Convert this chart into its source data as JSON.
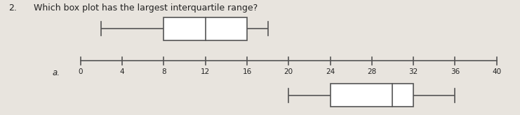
{
  "question_number": "2.",
  "question_text": "Which box plot has the largest interquartile range?",
  "label_a": "a.",
  "axis_min": 0,
  "axis_max": 40,
  "axis_ticks": [
    0,
    4,
    8,
    12,
    16,
    20,
    24,
    28,
    32,
    36,
    40
  ],
  "boxplot_top": {
    "whisker_lo": 2,
    "q1": 8,
    "median": 12,
    "q3": 16,
    "whisker_hi": 18
  },
  "boxplot_bottom": {
    "whisker_lo": 20,
    "q1": 24,
    "median": 30,
    "q3": 32,
    "whisker_hi": 36
  },
  "box_facecolor": "#ffffff",
  "box_edgecolor": "#555555",
  "line_color": "#555555",
  "bg_color": "#e8e4de",
  "text_color": "#222222",
  "lw": 1.2
}
